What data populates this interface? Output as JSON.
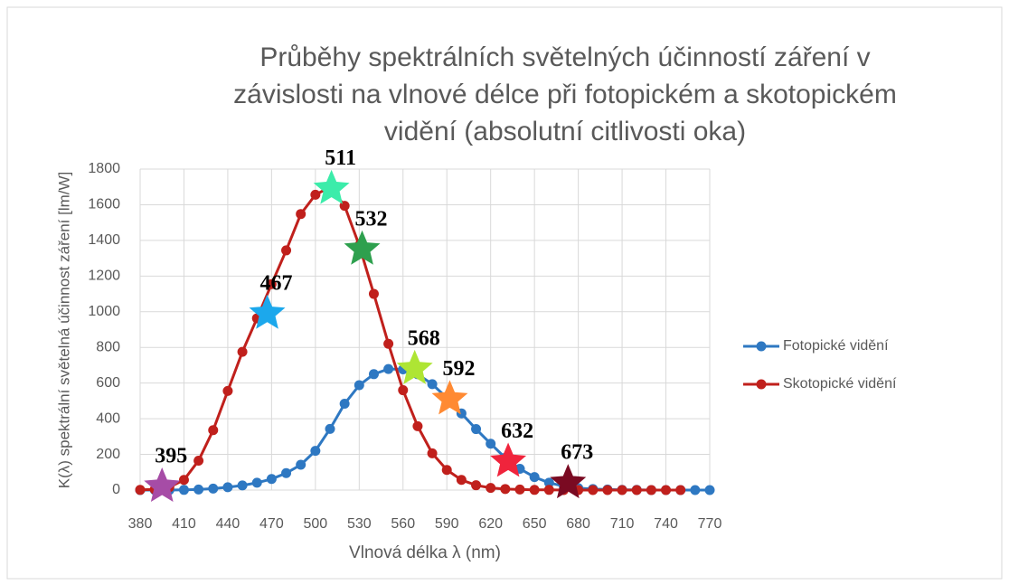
{
  "chart_data": {
    "type": "line",
    "title": [
      "Průběhy spektrálních světelných účinností záření v",
      "závislosti na vlnové délce při fotopickém a skotopickém",
      "vidění (absolutní citlivosti oka)"
    ],
    "xlabel": "Vlnová délka λ (nm)",
    "ylabel": "K(λ) spektrální světelná účinnost záření [lm/W]",
    "x": [
      380,
      390,
      400,
      410,
      420,
      430,
      440,
      450,
      460,
      470,
      480,
      490,
      500,
      510,
      520,
      530,
      540,
      550,
      560,
      570,
      580,
      590,
      600,
      610,
      620,
      630,
      640,
      650,
      660,
      670,
      680,
      690,
      700,
      710,
      720,
      730,
      740,
      750,
      760,
      770
    ],
    "series": [
      {
        "name": "Fotopické vidění",
        "color": "#2e78c2",
        "values": [
          0,
          0,
          0,
          1,
          3,
          8,
          16,
          26,
          41,
          62,
          95,
          142,
          220,
          343,
          484,
          588,
          650,
          679,
          677,
          650,
          594,
          517,
          430,
          342,
          260,
          181,
          119,
          73,
          41,
          22,
          11,
          6,
          3,
          1,
          1,
          0,
          0,
          0,
          0,
          0
        ]
      },
      {
        "name": "Skotopické vidění",
        "color": "#c0201c",
        "values": [
          1,
          4,
          16,
          57,
          165,
          336,
          556,
          775,
          963,
          1155,
          1344,
          1548,
          1656,
          1699,
          1594,
          1372,
          1100,
          820,
          560,
          358,
          206,
          113,
          57,
          27,
          12,
          6,
          3,
          1,
          1,
          0,
          0,
          0,
          0,
          0,
          0,
          0,
          0,
          0,
          null,
          null
        ]
      }
    ],
    "annotations": [
      {
        "x": 395,
        "y": 20,
        "color": "#a64ca6"
      },
      {
        "x": 467,
        "y": 990,
        "color": "#1ca8ec"
      },
      {
        "x": 511,
        "y": 1690,
        "color": "#3cecaa"
      },
      {
        "x": 532,
        "y": 1350,
        "color": "#2ea04e"
      },
      {
        "x": 568,
        "y": 680,
        "color": "#aee534"
      },
      {
        "x": 592,
        "y": 510,
        "color": "#ff8a33"
      },
      {
        "x": 632,
        "y": 160,
        "color": "#f0243c"
      },
      {
        "x": 673,
        "y": 40,
        "color": "#7a0a22"
      }
    ],
    "xlim": [
      380,
      770
    ],
    "xticks": [
      380,
      410,
      440,
      470,
      500,
      530,
      560,
      590,
      620,
      650,
      680,
      710,
      740,
      770
    ],
    "ylim": [
      0,
      1800
    ],
    "yticks": [
      0,
      200,
      400,
      600,
      800,
      1000,
      1200,
      1400,
      1600,
      1800
    ],
    "grid": true,
    "legend": "right"
  }
}
